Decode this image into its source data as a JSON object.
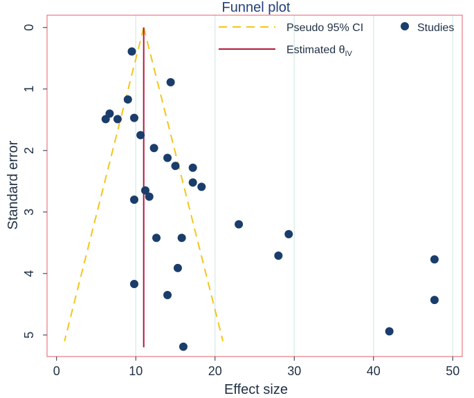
{
  "chart_data": {
    "type": "scatter",
    "title": "Funnel plot",
    "xlabel": "Effect size",
    "ylabel": "Standard error",
    "xlim": [
      -1.2,
      51.2
    ],
    "ylim": [
      -0.2,
      5.35
    ],
    "y_reversed": true,
    "x_ticks": [
      0,
      10,
      20,
      30,
      40,
      50
    ],
    "y_ticks": [
      0,
      1,
      2,
      3,
      4,
      5
    ],
    "grid": "vertical",
    "legend_position": "top-right",
    "legend": {
      "ci_label": "Pseudo 95% CI",
      "studies_label": "Studies",
      "estimate_label": "Estimated θ",
      "estimate_subscript": "IV"
    },
    "estimate": 11.0,
    "ci_lines": {
      "apex": [
        11.0,
        0
      ],
      "left_base": [
        1.0,
        5.1
      ],
      "right_base": [
        21.0,
        5.1
      ]
    },
    "estimate_line_range": [
      0,
      5.2
    ],
    "points": [
      {
        "x": 9.5,
        "y": 0.39
      },
      {
        "x": 14.4,
        "y": 0.89
      },
      {
        "x": 9.0,
        "y": 1.17
      },
      {
        "x": 6.7,
        "y": 1.4
      },
      {
        "x": 6.2,
        "y": 1.49
      },
      {
        "x": 7.7,
        "y": 1.49
      },
      {
        "x": 9.8,
        "y": 1.47
      },
      {
        "x": 10.6,
        "y": 1.75
      },
      {
        "x": 12.3,
        "y": 1.96
      },
      {
        "x": 14.0,
        "y": 2.12
      },
      {
        "x": 15.0,
        "y": 2.25
      },
      {
        "x": 17.2,
        "y": 2.28
      },
      {
        "x": 17.2,
        "y": 2.52
      },
      {
        "x": 18.3,
        "y": 2.59
      },
      {
        "x": 11.2,
        "y": 2.65
      },
      {
        "x": 11.7,
        "y": 2.75
      },
      {
        "x": 9.8,
        "y": 2.8
      },
      {
        "x": 23.0,
        "y": 3.2
      },
      {
        "x": 29.3,
        "y": 3.36
      },
      {
        "x": 12.6,
        "y": 3.42
      },
      {
        "x": 15.8,
        "y": 3.42
      },
      {
        "x": 28.0,
        "y": 3.71
      },
      {
        "x": 47.7,
        "y": 3.77
      },
      {
        "x": 15.3,
        "y": 3.91
      },
      {
        "x": 9.8,
        "y": 4.17
      },
      {
        "x": 14.0,
        "y": 4.35
      },
      {
        "x": 47.7,
        "y": 4.43
      },
      {
        "x": 42.0,
        "y": 4.94
      },
      {
        "x": 16.0,
        "y": 5.19
      }
    ],
    "colors": {
      "axes_frame": "#e35d6a",
      "grid": "#dbeee9",
      "point": "#1a3d6b",
      "ci_line": "#f5c518",
      "estimate_line": "#b2183a",
      "text": "#1f2f44",
      "title": "#24407a"
    }
  }
}
